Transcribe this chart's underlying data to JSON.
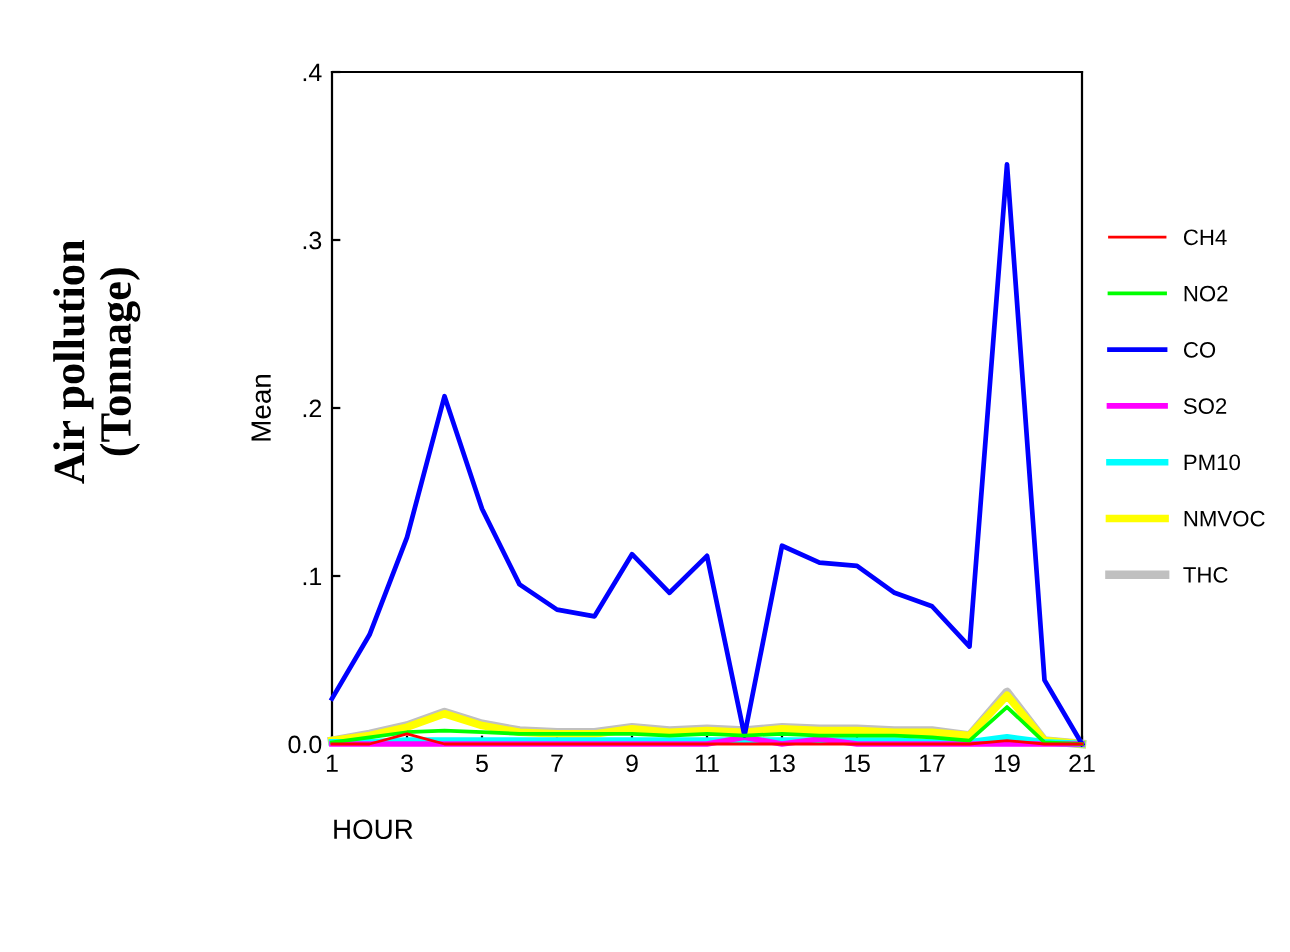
{
  "chart_data": {
    "type": "line",
    "title": "Air pollution\n(Tonnage)",
    "ylabel": "Mean",
    "xlabel": "HOUR",
    "x": [
      1,
      2,
      3,
      4,
      5,
      6,
      7,
      8,
      9,
      10,
      11,
      12,
      13,
      14,
      15,
      16,
      17,
      18,
      19,
      20,
      21
    ],
    "xlim": [
      1,
      21
    ],
    "xticks": [
      1,
      3,
      5,
      7,
      9,
      11,
      13,
      15,
      17,
      19,
      21
    ],
    "ylim": [
      0,
      0.4
    ],
    "yticks": [
      {
        "value": 0,
        "label": "0.0"
      },
      {
        "value": 0.1,
        "label": ".1"
      },
      {
        "value": 0.2,
        "label": ".2"
      },
      {
        "value": 0.3,
        "label": ".3"
      },
      {
        "value": 0.4,
        "label": ".4"
      }
    ],
    "grid": false,
    "legend": "right",
    "marker": "none",
    "line_style": "solid",
    "series": [
      {
        "name": "CH4",
        "color": "#ff0000",
        "values": [
          0,
          0,
          0.006,
          0,
          0,
          0,
          0,
          0,
          0,
          0,
          0,
          0,
          0,
          0,
          0,
          0,
          0,
          0,
          0.002,
          0,
          0
        ]
      },
      {
        "name": "NO2",
        "color": "#00ff00",
        "values": [
          0.001,
          0.004,
          0.007,
          0.008,
          0.007,
          0.006,
          0.006,
          0.006,
          0.006,
          0.005,
          0.006,
          0.005,
          0.006,
          0.005,
          0.005,
          0.005,
          0.004,
          0.002,
          0.022,
          0.001,
          0
        ]
      },
      {
        "name": "CO",
        "color": "#0000ff",
        "values": [
          0.027,
          0.065,
          0.123,
          0.207,
          0.14,
          0.095,
          0.08,
          0.076,
          0.113,
          0.09,
          0.112,
          0.005,
          0.118,
          0.108,
          0.106,
          0.09,
          0.082,
          0.058,
          0.345,
          0.038,
          0
        ]
      },
      {
        "name": "SO2",
        "color": "#ff00ff",
        "values": [
          0,
          0,
          0,
          0,
          0,
          0,
          0,
          0,
          0,
          0,
          0,
          0.004,
          0,
          0.003,
          0,
          0,
          0,
          0,
          0,
          0,
          0
        ]
      },
      {
        "name": "PM10",
        "color": "#00ffff",
        "values": [
          0.001,
          0.001,
          0.002,
          0.002,
          0.002,
          0.002,
          0.002,
          0.002,
          0.002,
          0.002,
          0.002,
          0.002,
          0.002,
          0.002,
          0.002,
          0.002,
          0.001,
          0.001,
          0.004,
          0.001,
          0
        ]
      },
      {
        "name": "NMVOC",
        "color": "#ffff00",
        "values": [
          0.002,
          0.005,
          0.01,
          0.018,
          0.011,
          0.007,
          0.006,
          0.006,
          0.009,
          0.007,
          0.008,
          0.007,
          0.009,
          0.008,
          0.008,
          0.007,
          0.007,
          0.005,
          0.029,
          0.002,
          0
        ]
      },
      {
        "name": "THC",
        "color": "#c0c0c0",
        "values": [
          0.002,
          0.006,
          0.011,
          0.019,
          0.012,
          0.008,
          0.007,
          0.007,
          0.01,
          0.008,
          0.009,
          0.008,
          0.01,
          0.009,
          0.009,
          0.008,
          0.008,
          0.005,
          0.031,
          0.002,
          0
        ]
      }
    ]
  }
}
